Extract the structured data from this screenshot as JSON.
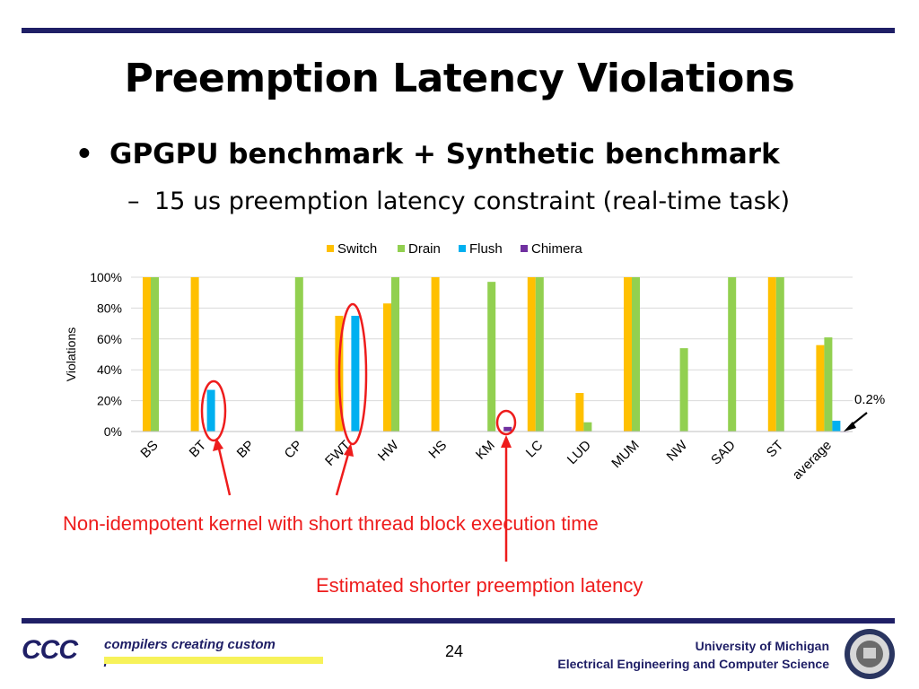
{
  "slide": {
    "title": "Preemption Latency Violations",
    "bullet": "GPGPU benchmark + Synthetic benchmark",
    "subbullet": "15 us preemption latency constraint (real-time task)",
    "note_red_1": "Non-idempotent kernel with short thread block execution time",
    "note_red_2": "Estimated shorter preemption latency",
    "page_number": "24",
    "footer_left": "compilers creating custom processors",
    "footer_logo_mark": "CCC",
    "footer_right_line1": "University of Michigan",
    "footer_right_line2": "Electrical Engineering and Computer Science",
    "average_annotation": "0.2%"
  },
  "colors": {
    "rule": "#1f1f66",
    "annotation_red": "#ee1c1c",
    "switch": "#ffc000",
    "drain": "#92d050",
    "flush": "#00b0f0",
    "chimera": "#7030a0"
  },
  "chart_data": {
    "type": "bar",
    "title": "",
    "xlabel": "",
    "ylabel": "Violations",
    "ylim": [
      0,
      100
    ],
    "yticks": [
      "0%",
      "20%",
      "40%",
      "60%",
      "80%",
      "100%"
    ],
    "grid": true,
    "legend_position": "top",
    "categories": [
      "BS",
      "BT",
      "BP",
      "CP",
      "FWT",
      "HW",
      "HS",
      "KM",
      "LC",
      "LUD",
      "MUM",
      "NW",
      "SAD",
      "ST",
      "average"
    ],
    "series": [
      {
        "name": "Switch",
        "color": "#ffc000",
        "values": [
          100,
          100,
          0,
          0,
          75,
          83,
          100,
          0,
          100,
          25,
          100,
          0,
          0,
          100,
          56
        ]
      },
      {
        "name": "Drain",
        "color": "#92d050",
        "values": [
          100,
          0,
          0,
          100,
          0,
          100,
          0,
          97,
          100,
          6,
          100,
          54,
          100,
          100,
          61
        ]
      },
      {
        "name": "Flush",
        "color": "#00b0f0",
        "values": [
          0,
          27,
          0,
          0,
          75,
          0,
          0,
          0,
          0,
          0,
          0,
          0,
          0,
          0,
          7
        ]
      },
      {
        "name": "Chimera",
        "color": "#7030a0",
        "values": [
          0,
          0,
          0,
          0,
          0,
          0,
          0,
          3,
          0,
          0,
          0,
          0,
          0,
          0,
          0.2
        ]
      }
    ]
  }
}
